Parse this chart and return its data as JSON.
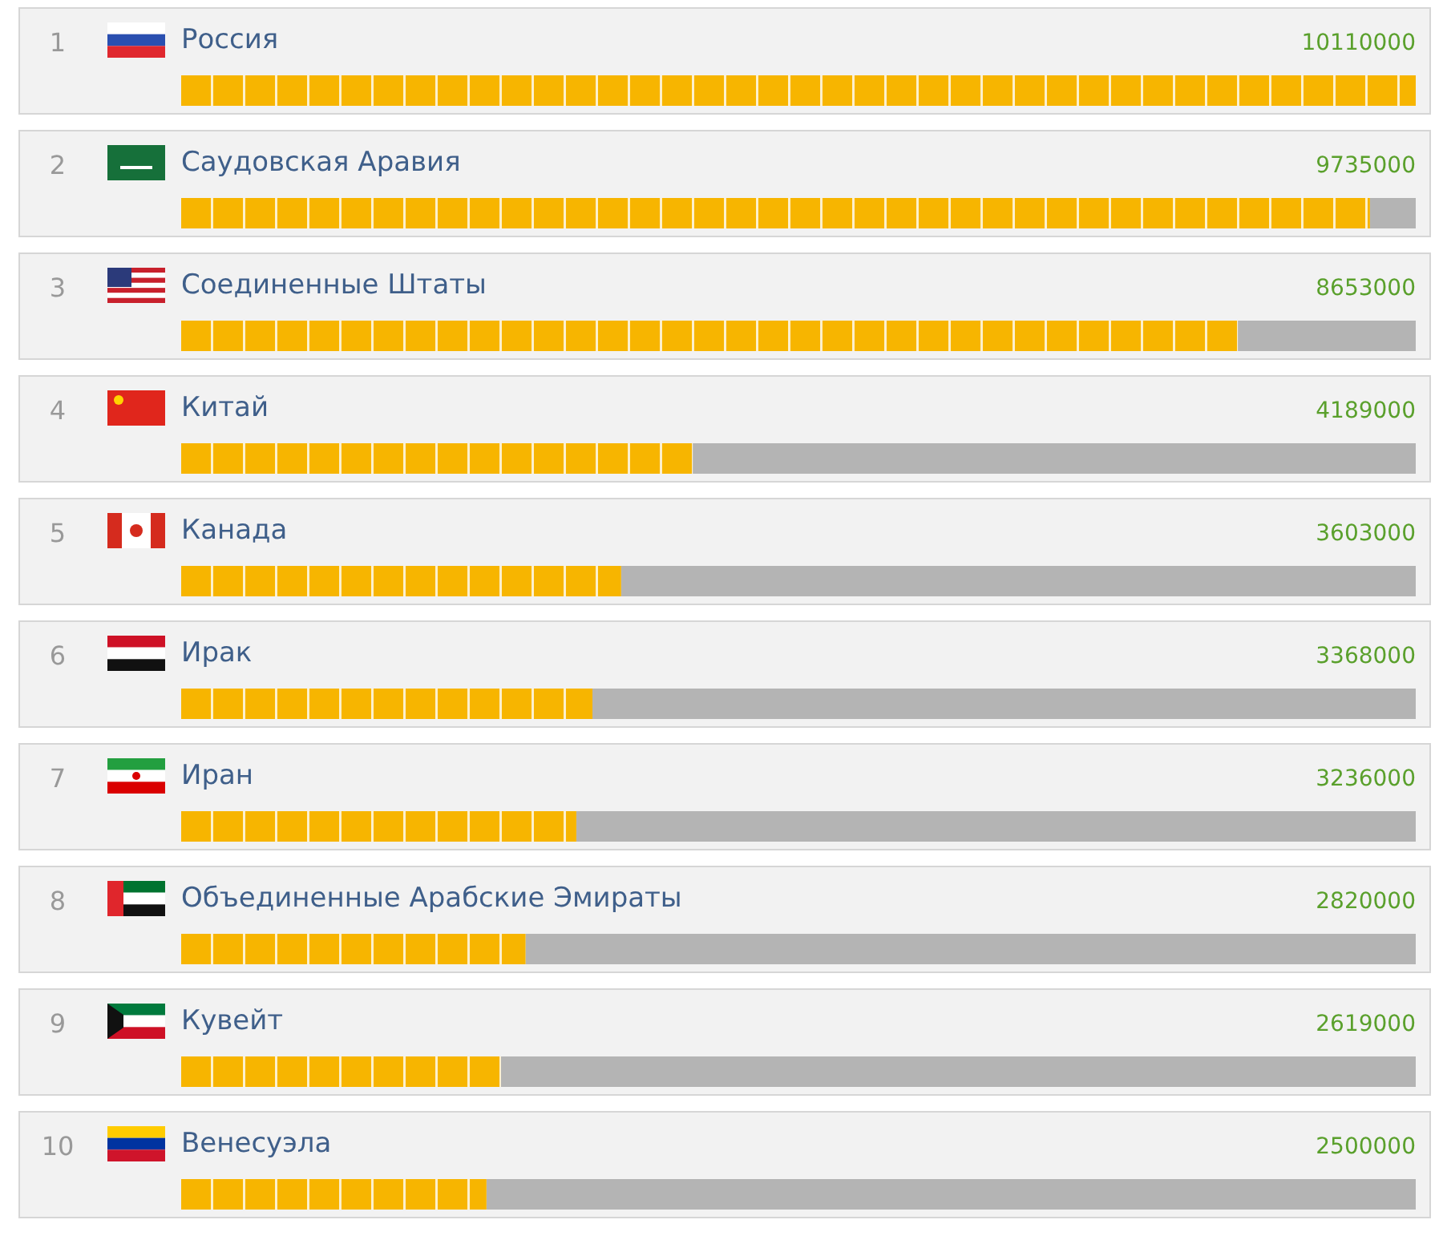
{
  "chart_data": {
    "type": "bar",
    "orientation": "horizontal",
    "categories": [
      "Россия",
      "Саудовская Аравия",
      "Соединенные Штаты",
      "Китай",
      "Канада",
      "Ирак",
      "Иран",
      "Объединенные Арабские Эмираты",
      "Кувейт",
      "Венесуэла"
    ],
    "values": [
      10110000,
      9735000,
      8653000,
      4189000,
      3603000,
      3368000,
      3236000,
      2820000,
      2619000,
      2500000
    ],
    "color": "#f7b500",
    "data_labels": true,
    "annotations": [
      "1",
      "2",
      "3",
      "4",
      "5",
      "6",
      "7",
      "8",
      "9",
      "10"
    ]
  }
}
